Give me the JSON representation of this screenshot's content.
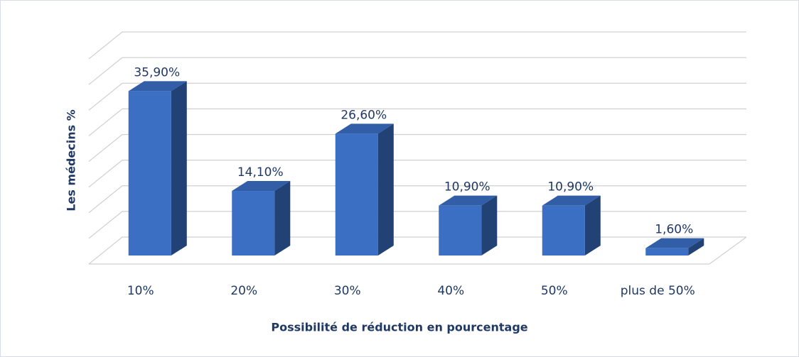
{
  "chart_data": {
    "type": "bar3d",
    "x_label": "Possibilité de réduction en pourcentage",
    "y_label": "Les médecins %",
    "categories": [
      "10%",
      "20%",
      "30%",
      "40%",
      "50%",
      "plus de 50%"
    ],
    "values": [
      35.9,
      14.1,
      26.6,
      10.9,
      10.9,
      1.6
    ],
    "value_labels": [
      "35,90%",
      "14,10%",
      "26,60%",
      "10,90%",
      "10,90%",
      "1,60%"
    ],
    "color": "#3a6fc4",
    "ylim": [
      0,
      40
    ],
    "yticks": [
      0,
      5,
      10,
      15,
      20,
      25,
      30,
      35,
      40
    ],
    "grid": true
  }
}
